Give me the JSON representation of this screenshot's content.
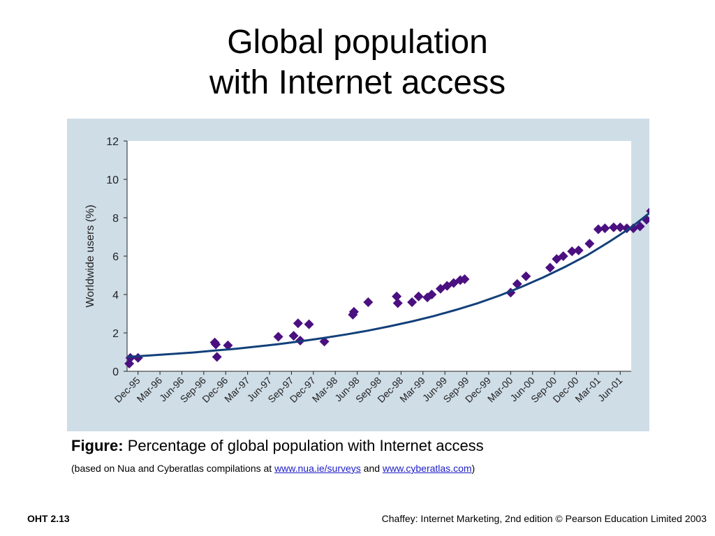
{
  "slide": {
    "title_line1": "Global population",
    "title_line2": "with Internet access"
  },
  "caption": {
    "label": "Figure:",
    "text": "Percentage of global population with Internet access",
    "source_prefix": "(based on Nua and Cyberatlas compilations at ",
    "link1": "www.nua.ie/surveys",
    "source_mid": " and ",
    "link2": "www.cyberatlas.com",
    "source_suffix": ")"
  },
  "footer": {
    "left": "OHT 2.13",
    "right": "Chaffey: Internet Marketing, 2nd edition © Pearson Education Limited 2003"
  },
  "colors": {
    "panel": "#cfdde7",
    "marker": "#4b1080",
    "trend": "#12407a",
    "axis": "#222222"
  },
  "chart_data": {
    "type": "scatter",
    "title": "",
    "xlabel": "",
    "ylabel": "Worldwide users (%)",
    "ylim": [
      0,
      12
    ],
    "yticks": [
      0,
      2,
      4,
      6,
      8,
      10,
      12
    ],
    "xticks": [
      "Dec-95",
      "Mar-96",
      "Jun-96",
      "Sep-96",
      "Dec-96",
      "Mar-97",
      "Jun-97",
      "Sep-97",
      "Dec-97",
      "Mar-98",
      "Jun-98",
      "Sep-98",
      "Dec-98",
      "Mar-99",
      "Jun-99",
      "Sep-99",
      "Dec-99",
      "Mar-00",
      "Jun-00",
      "Sep-00",
      "Dec-00",
      "Mar-01",
      "Jun-01"
    ],
    "grid": false,
    "legend": "none",
    "series": [
      {
        "kind": "points",
        "marker": "diamond",
        "x": [
          0.1,
          0.15,
          0.5,
          4.0,
          4.05,
          4.1,
          4.6,
          6.9,
          7.6,
          7.8,
          7.9,
          8.3,
          9.0,
          10.3,
          10.35,
          11.0,
          12.3,
          12.35,
          13.0,
          13.3,
          13.7,
          13.9,
          14.3,
          14.6,
          14.9,
          15.2,
          15.4,
          17.5,
          17.8,
          18.2,
          19.3,
          19.6,
          19.9,
          20.3,
          20.6,
          21.1,
          21.5,
          21.8,
          22.2,
          22.5,
          22.8,
          23.1,
          23.4,
          23.7,
          23.9
        ],
        "y": [
          0.4,
          0.7,
          0.7,
          1.5,
          1.4,
          0.75,
          1.35,
          1.8,
          1.85,
          2.5,
          1.6,
          2.45,
          1.55,
          2.95,
          3.1,
          3.6,
          3.9,
          3.55,
          3.6,
          3.9,
          3.85,
          4.0,
          4.3,
          4.45,
          4.6,
          4.75,
          4.8,
          4.1,
          4.55,
          4.95,
          5.4,
          5.85,
          6.0,
          6.25,
          6.3,
          6.65,
          7.4,
          7.45,
          7.5,
          7.5,
          7.45,
          7.45,
          7.55,
          7.9,
          8.35
        ]
      },
      {
        "kind": "line",
        "x": [
          0,
          1,
          2,
          3,
          4,
          5,
          6,
          7,
          8,
          9,
          10,
          11,
          12,
          13,
          14,
          15,
          16,
          17,
          18,
          19,
          20,
          21,
          22,
          23,
          24
        ],
        "y": [
          0.75,
          0.82,
          0.9,
          0.98,
          1.08,
          1.18,
          1.3,
          1.43,
          1.58,
          1.74,
          1.92,
          2.12,
          2.35,
          2.6,
          2.88,
          3.2,
          3.55,
          3.95,
          4.4,
          4.9,
          5.45,
          6.05,
          6.75,
          7.5,
          8.4
        ]
      }
    ]
  }
}
